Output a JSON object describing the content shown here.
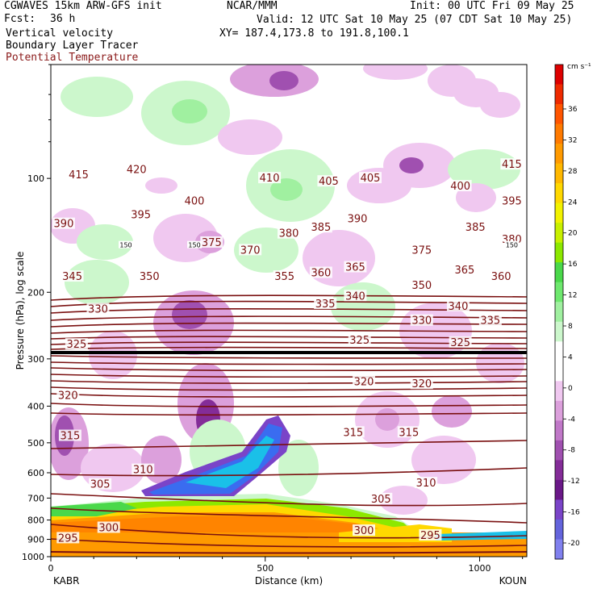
{
  "header": {
    "model": "CGWAVES 15km ARW-GFS init",
    "fcst_label": "Fcst:",
    "fcst_value": "36 h",
    "field1": "Vertical velocity",
    "field2": "Boundary Layer Tracer",
    "field3": "Potential Temperature",
    "org": "NCAR/MMM",
    "init": "Init: 00 UTC Fri 09 May 25",
    "valid": "Valid: 12 UTC Sat 10 May 25 (07 CDT Sat 10 May 25)",
    "xy": "XY= 187.4,173.8 to 191.8,100.1"
  },
  "colors": {
    "theta": "#7a1010",
    "tracer_line": "#000000",
    "frame": "#000000"
  },
  "chart_data": {
    "type": "heatmap",
    "ylabel": "Pressure (hPa), log scale",
    "xlabel": "Distance (km)",
    "x_left_label": "KABR",
    "x_right_label": "KOUN",
    "xlim": [
      0,
      1110
    ],
    "ylim": [
      1000,
      50
    ],
    "y_scale": "log",
    "x_ticks": [
      0,
      500,
      1000
    ],
    "y_ticks": [
      100,
      200,
      300,
      400,
      500,
      600,
      700,
      800,
      900,
      1000
    ],
    "colorbar": {
      "unit": "cm s⁻¹",
      "tick_labels": [
        "36",
        "32",
        "28",
        "24",
        "20",
        "16",
        "12",
        "8",
        "4",
        "0",
        "-4",
        "-8",
        "-12",
        "-16",
        "-20"
      ],
      "colors": [
        "#dd0000",
        "#ee2a00",
        "#ff5500",
        "#ff7a00",
        "#ff9a00",
        "#ffb800",
        "#ffd800",
        "#f2f200",
        "#c8f000",
        "#8ce800",
        "#4ad84a",
        "#6ee86e",
        "#a0f0a0",
        "#ccf7cc",
        "#ffffff",
        "#ffffff",
        "#f0c8f0",
        "#dca0dc",
        "#c078c8",
        "#a050b0",
        "#842c98",
        "#6a1888",
        "#7a44c8",
        "#6464dc",
        "#8080ee"
      ]
    },
    "theta_labels": [
      {
        "t": "415",
        "x": 65,
        "p": 98
      },
      {
        "t": "420",
        "x": 200,
        "p": 95
      },
      {
        "t": "410",
        "x": 510,
        "p": 100
      },
      {
        "t": "405",
        "x": 648,
        "p": 102
      },
      {
        "t": "405",
        "x": 745,
        "p": 100
      },
      {
        "t": "400",
        "x": 955,
        "p": 105
      },
      {
        "t": "415",
        "x": 1075,
        "p": 92
      },
      {
        "t": "395",
        "x": 1075,
        "p": 115
      },
      {
        "t": "400",
        "x": 335,
        "p": 115
      },
      {
        "t": "390",
        "x": 30,
        "p": 132
      },
      {
        "t": "395",
        "x": 210,
        "p": 125
      },
      {
        "t": "390",
        "x": 715,
        "p": 128
      },
      {
        "t": "385",
        "x": 630,
        "p": 135
      },
      {
        "t": "380",
        "x": 555,
        "p": 140
      },
      {
        "t": "385",
        "x": 990,
        "p": 135
      },
      {
        "t": "380",
        "x": 1075,
        "p": 145
      },
      {
        "t": "375",
        "x": 375,
        "p": 148
      },
      {
        "t": "370",
        "x": 465,
        "p": 155
      },
      {
        "t": "375",
        "x": 865,
        "p": 155
      },
      {
        "t": "345",
        "x": 50,
        "p": 182
      },
      {
        "t": "350",
        "x": 230,
        "p": 182
      },
      {
        "t": "355",
        "x": 545,
        "p": 182
      },
      {
        "t": "360",
        "x": 630,
        "p": 178
      },
      {
        "t": "365",
        "x": 710,
        "p": 172
      },
      {
        "t": "350",
        "x": 865,
        "p": 192
      },
      {
        "t": "365",
        "x": 965,
        "p": 175
      },
      {
        "t": "360",
        "x": 1050,
        "p": 182
      },
      {
        "t": "340",
        "x": 710,
        "p": 205
      },
      {
        "t": "335",
        "x": 640,
        "p": 215
      },
      {
        "t": "340",
        "x": 950,
        "p": 218
      },
      {
        "t": "330",
        "x": 110,
        "p": 222
      },
      {
        "t": "330",
        "x": 865,
        "p": 238
      },
      {
        "t": "335",
        "x": 1025,
        "p": 238
      },
      {
        "t": "325",
        "x": 60,
        "p": 275
      },
      {
        "t": "325",
        "x": 720,
        "p": 268
      },
      {
        "t": "325",
        "x": 955,
        "p": 272
      },
      {
        "t": "320",
        "x": 40,
        "p": 375
      },
      {
        "t": "320",
        "x": 730,
        "p": 345
      },
      {
        "t": "320",
        "x": 865,
        "p": 350
      },
      {
        "t": "315",
        "x": 45,
        "p": 480
      },
      {
        "t": "315",
        "x": 705,
        "p": 470
      },
      {
        "t": "315",
        "x": 835,
        "p": 470
      },
      {
        "t": "310",
        "x": 215,
        "p": 590
      },
      {
        "t": "310",
        "x": 875,
        "p": 640
      },
      {
        "t": "305",
        "x": 115,
        "p": 645
      },
      {
        "t": "305",
        "x": 770,
        "p": 705
      },
      {
        "t": "300",
        "x": 135,
        "p": 840
      },
      {
        "t": "300",
        "x": 730,
        "p": 855
      },
      {
        "t": "295",
        "x": 40,
        "p": 895
      },
      {
        "t": "295",
        "x": 885,
        "p": 880
      }
    ],
    "tracer_labels": [
      {
        "t": "150",
        "x": 175,
        "p": 150
      },
      {
        "t": "150",
        "x": 335,
        "p": 150
      },
      {
        "t": "150",
        "x": 1075,
        "p": 150
      }
    ]
  }
}
